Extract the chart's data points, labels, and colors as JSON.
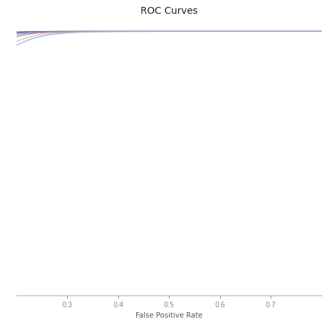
{
  "title": "ROC Curves",
  "xlabel": "False Positive Rate",
  "ylabel": "",
  "xlim": [
    0.2,
    0.8
  ],
  "ylim": [
    0.55,
    1.02
  ],
  "xticks": [
    0.3,
    0.4,
    0.5,
    0.6,
    0.7
  ],
  "background_color": "#ffffff",
  "curves": [
    {
      "color": "#c8c820",
      "beta": 0.03
    },
    {
      "color": "#9090b8",
      "beta": 0.033
    },
    {
      "color": "#3838a0",
      "beta": 0.036
    },
    {
      "color": "#50b8c0",
      "beta": 0.04
    },
    {
      "color": "#b060b8",
      "beta": 0.044
    },
    {
      "color": "#c88888",
      "beta": 0.048
    },
    {
      "color": "#a0a0d0",
      "beta": 0.06
    }
  ],
  "special_curve": {
    "color": "#a0b8d0",
    "dip": true
  }
}
